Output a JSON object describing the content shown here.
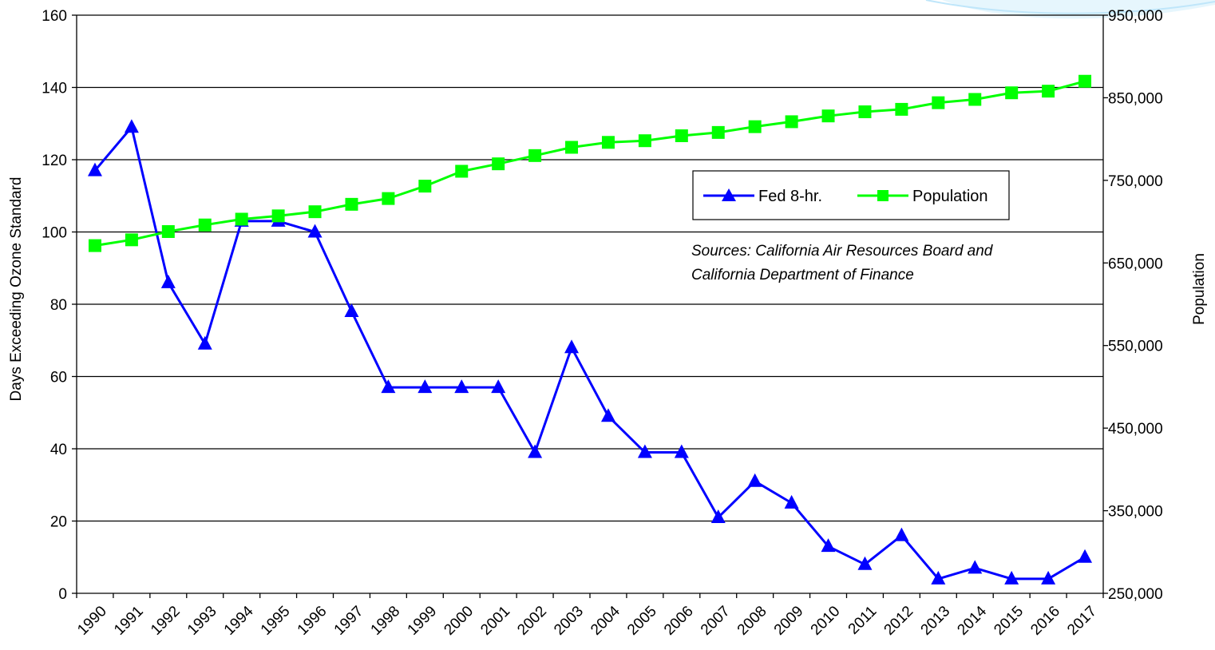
{
  "chart_data": {
    "type": "line",
    "title": "",
    "xlabel": "",
    "ylabel": "Days Exceeding Ozone Standard",
    "ylabel_right": "Population",
    "ylim": [
      0,
      160
    ],
    "ylim_right": [
      250000,
      950000
    ],
    "yticks": [
      "0",
      "20",
      "40",
      "60",
      "80",
      "100",
      "120",
      "140",
      "160"
    ],
    "yticks_right": [
      "250,000",
      "350,000",
      "450,000",
      "550,000",
      "650,000",
      "750,000",
      "850,000",
      "950,000"
    ],
    "categories": [
      "1990",
      "1991",
      "1992",
      "1993",
      "1994",
      "1995",
      "1996",
      "1997",
      "1998",
      "1999",
      "2000",
      "2001",
      "2002",
      "2003",
      "2004",
      "2005",
      "2006",
      "2007",
      "2008",
      "2009",
      "2010",
      "2011",
      "2012",
      "2013",
      "2014",
      "2015",
      "2016",
      "2017"
    ],
    "series": [
      {
        "name": "Fed 8-hr.",
        "axis": "left",
        "color": "#0000ff",
        "marker": "triangle",
        "values": [
          117,
          129,
          86,
          69,
          103,
          103,
          100,
          78,
          57,
          57,
          57,
          57,
          39,
          68,
          49,
          39,
          39,
          21,
          31,
          25,
          13,
          8,
          16,
          4,
          7,
          4,
          4,
          10
        ]
      },
      {
        "name": "Population",
        "axis": "right",
        "color": "#00ff00",
        "marker": "square",
        "values": [
          671000,
          678000,
          688000,
          696000,
          703000,
          707000,
          712000,
          721000,
          728000,
          743000,
          761000,
          770000,
          780000,
          790000,
          796000,
          798000,
          804000,
          808000,
          815000,
          821000,
          828000,
          833000,
          836000,
          844000,
          848000,
          856000,
          858000,
          870000
        ]
      }
    ],
    "grid": true,
    "legend_position": "upper-right-inset",
    "annotation": "Sources: California Air Resources Board and California Department of Finance",
    "annotation_lines": [
      "Sources: California Air Resources Board and",
      "California Department of Finance"
    ]
  }
}
